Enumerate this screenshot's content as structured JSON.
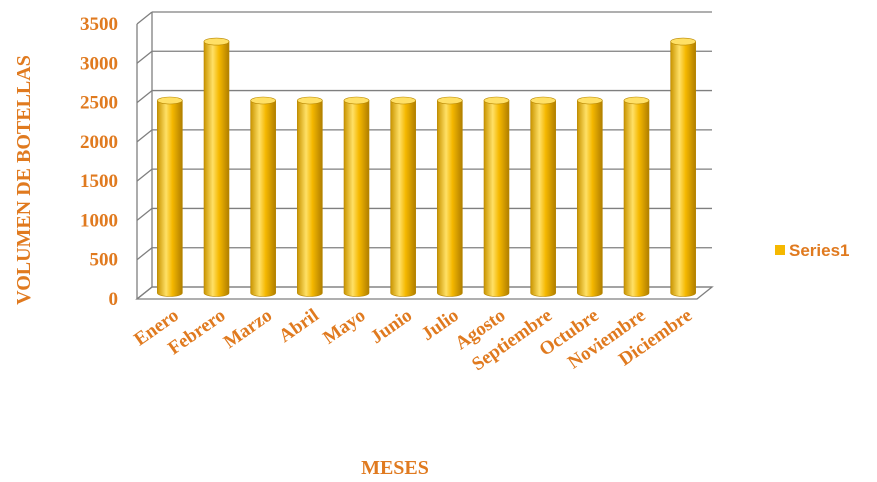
{
  "chart_data": {
    "type": "bar",
    "categories": [
      "Enero",
      "Febrero",
      "Marzo",
      "Abril",
      "Mayo",
      "Junio",
      "Julio",
      "Agosto",
      "Septiembre",
      "Octubre",
      "Noviembre",
      "Diciembre"
    ],
    "series": [
      {
        "name": "Series1",
        "values": [
          2450,
          3200,
          2450,
          2450,
          2450,
          2450,
          2450,
          2450,
          2450,
          2450,
          2450,
          3200
        ]
      }
    ],
    "xlabel": "MESES",
    "ylabel": "VOLUMEN DE BOTELLAS",
    "ylim": [
      0,
      3500
    ],
    "yticks": [
      0,
      500,
      1000,
      1500,
      2000,
      2500,
      3000,
      3500
    ],
    "grid": true,
    "legend_position": "right",
    "colors": {
      "bar": "#F5B800",
      "bar_dark": "#B88600",
      "bar_light": "#FFE066",
      "text": "#E07A1F",
      "grid": "#7F7F7F",
      "legend_text": "#E07A1F"
    }
  }
}
